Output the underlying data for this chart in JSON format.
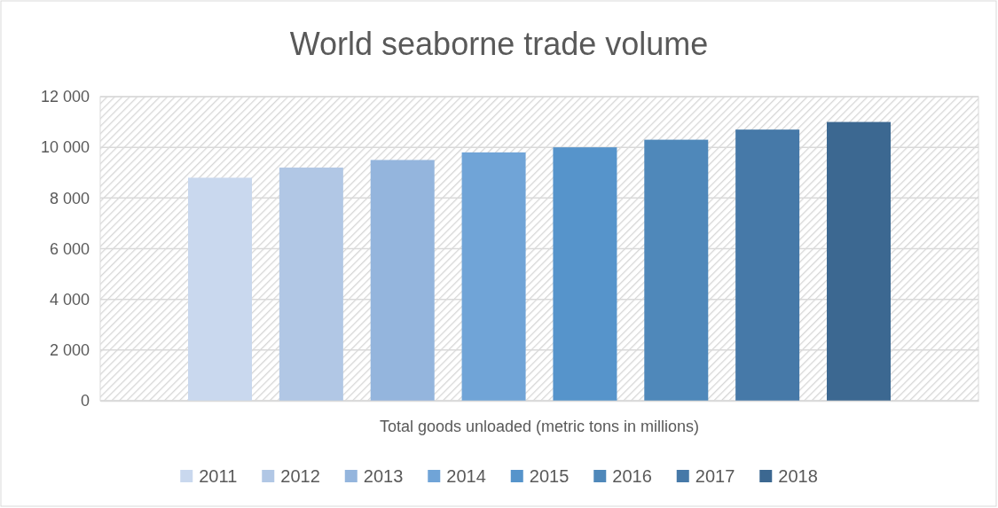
{
  "chart_data": {
    "type": "bar",
    "title": "World seaborne trade volume",
    "categories": [
      "Total goods unloaded (metric tons in millions)"
    ],
    "series": [
      {
        "name": "2011",
        "color": "#c9d8ee",
        "values": [
          8800
        ]
      },
      {
        "name": "2012",
        "color": "#b1c7e5",
        "values": [
          9200
        ]
      },
      {
        "name": "2013",
        "color": "#94b5dd",
        "values": [
          9500
        ]
      },
      {
        "name": "2014",
        "color": "#70a4d7",
        "values": [
          9800
        ]
      },
      {
        "name": "2015",
        "color": "#5694cb",
        "values": [
          10000
        ]
      },
      {
        "name": "2016",
        "color": "#4f88ba",
        "values": [
          10300
        ]
      },
      {
        "name": "2017",
        "color": "#4679a8",
        "values": [
          10700
        ]
      },
      {
        "name": "2018",
        "color": "#3c6891",
        "values": [
          11000
        ]
      }
    ],
    "ylim": [
      0,
      12000
    ],
    "yticks": [
      {
        "value": 0,
        "label": "0"
      },
      {
        "value": 2000,
        "label": "2 000"
      },
      {
        "value": 4000,
        "label": "4 000"
      },
      {
        "value": 6000,
        "label": "6 000"
      },
      {
        "value": 8000,
        "label": "8 000"
      },
      {
        "value": 10000,
        "label": "10 000"
      },
      {
        "value": 12000,
        "label": "12 000"
      }
    ],
    "grid": "y",
    "legend": "bottom"
  }
}
